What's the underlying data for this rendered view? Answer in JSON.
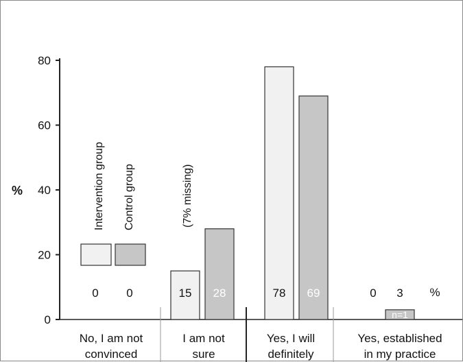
{
  "chart_data": {
    "type": "bar",
    "ylabel": "%",
    "ylim": [
      0,
      80
    ],
    "yticks": [
      "0",
      "20",
      "40",
      "60",
      "80"
    ],
    "categories": [
      {
        "line1": "No, I am not",
        "line2": "convinced"
      },
      {
        "line1": "I am not",
        "line2": "sure"
      },
      {
        "line1": "Yes, I will",
        "line2": "definitely"
      },
      {
        "line1": "Yes, established",
        "line2": "in my practice"
      }
    ],
    "series": [
      {
        "name": "Intervention group",
        "values": [
          0,
          15,
          78,
          0
        ],
        "labels": [
          "0",
          "15",
          "78",
          "0"
        ],
        "color": "#f1f1f1"
      },
      {
        "name": "Control group",
        "values": [
          0,
          28,
          69,
          3
        ],
        "labels": [
          "0",
          "28",
          "69",
          "3"
        ],
        "color": "#c6c6c6"
      }
    ],
    "annotations": {
      "missing": "(7% missing)",
      "n_label": "n=1",
      "percent_label": "%"
    },
    "colors": {
      "border": "#333333",
      "axis": "#222222",
      "separator": "#999999"
    }
  }
}
